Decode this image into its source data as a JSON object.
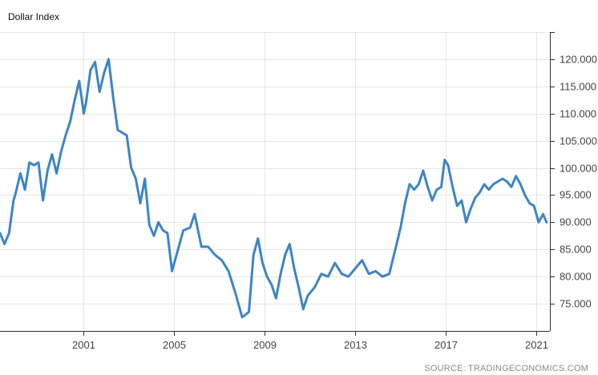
{
  "title": "Dollar Index",
  "source": "SOURCE: TRADINGECONOMICS.COM",
  "chart_data": {
    "type": "line",
    "title": "Dollar Index",
    "xlabel": "",
    "ylabel": "",
    "xlim": [
      1997.3,
      2021.6
    ],
    "ylim": [
      70.0,
      125.0
    ],
    "x_ticks": [
      2001,
      2005,
      2009,
      2013,
      2017,
      2021
    ],
    "x_tick_labels": [
      "2001",
      "2005",
      "2009",
      "2013",
      "2017",
      "2021"
    ],
    "y_ticks": [
      75,
      80,
      85,
      90,
      95,
      100,
      105,
      110,
      115,
      120
    ],
    "y_tick_labels": [
      "75.000",
      "80.000",
      "85.000",
      "90.000",
      "95.000",
      "100.000",
      "105.000",
      "110.000",
      "115.000",
      "120.000"
    ],
    "grid": true,
    "line_color": "#3d85c6",
    "series": [
      {
        "x": [
          1997.3,
          1997.5,
          1997.7,
          1997.9,
          1998.0,
          1998.2,
          1998.4,
          1998.6,
          1998.8,
          1999.0,
          1999.2,
          1999.4,
          1999.6,
          1999.8,
          2000.0,
          2000.2,
          2000.4,
          2000.6,
          2000.8,
          2001.0,
          2001.1,
          2001.3,
          2001.5,
          2001.7,
          2001.9,
          2002.1,
          2002.3,
          2002.5,
          2002.7,
          2002.9,
          2003.1,
          2003.3,
          2003.5,
          2003.7,
          2003.9,
          2004.1,
          2004.3,
          2004.5,
          2004.7,
          2004.9,
          2005.1,
          2005.4,
          2005.7,
          2005.9,
          2006.2,
          2006.5,
          2006.8,
          2007.1,
          2007.4,
          2007.7,
          2008.0,
          2008.3,
          2008.5,
          2008.7,
          2008.9,
          2009.1,
          2009.3,
          2009.5,
          2009.7,
          2009.9,
          2010.1,
          2010.3,
          2010.5,
          2010.7,
          2010.9,
          2011.2,
          2011.5,
          2011.8,
          2012.1,
          2012.4,
          2012.7,
          2013.0,
          2013.3,
          2013.6,
          2013.9,
          2014.2,
          2014.5,
          2014.8,
          2015.0,
          2015.2,
          2015.4,
          2015.6,
          2015.8,
          2016.0,
          2016.2,
          2016.4,
          2016.6,
          2016.8,
          2016.95,
          2017.1,
          2017.3,
          2017.5,
          2017.7,
          2017.9,
          2018.1,
          2018.3,
          2018.5,
          2018.7,
          2018.9,
          2019.1,
          2019.3,
          2019.5,
          2019.7,
          2019.9,
          2020.1,
          2020.3,
          2020.5,
          2020.7,
          2020.9,
          2021.1,
          2021.3,
          2021.45
        ],
        "values": [
          88.0,
          86.0,
          88.0,
          94.0,
          95.5,
          99.0,
          96.0,
          101.0,
          100.5,
          101.0,
          94.0,
          99.5,
          102.5,
          99.0,
          103.0,
          106.0,
          108.5,
          112.5,
          116.0,
          110.0,
          112.0,
          118.0,
          119.5,
          114.0,
          117.5,
          120.0,
          113.0,
          107.0,
          106.5,
          106.0,
          100.0,
          98.0,
          93.5,
          98.0,
          89.5,
          87.5,
          90.0,
          88.5,
          88.0,
          81.0,
          84.0,
          88.5,
          89.0,
          91.5,
          85.5,
          85.5,
          84.0,
          83.0,
          81.0,
          77.0,
          72.5,
          73.5,
          84.0,
          87.0,
          82.5,
          80.0,
          78.5,
          76.0,
          80.5,
          84.0,
          86.0,
          81.5,
          78.0,
          74.0,
          76.5,
          78.0,
          80.5,
          80.0,
          82.5,
          80.5,
          80.0,
          81.5,
          83.0,
          80.5,
          81.0,
          80.0,
          80.5,
          85.5,
          89.0,
          93.5,
          97.0,
          96.0,
          97.0,
          99.5,
          96.5,
          94.0,
          96.0,
          96.5,
          101.5,
          100.5,
          96.5,
          93.0,
          94.0,
          90.0,
          92.5,
          94.5,
          95.5,
          97.0,
          96.0,
          97.0,
          97.5,
          98.0,
          97.5,
          96.5,
          98.5,
          97.0,
          95.0,
          93.5,
          93.0,
          90.0,
          91.5,
          90.0
        ]
      }
    ]
  }
}
